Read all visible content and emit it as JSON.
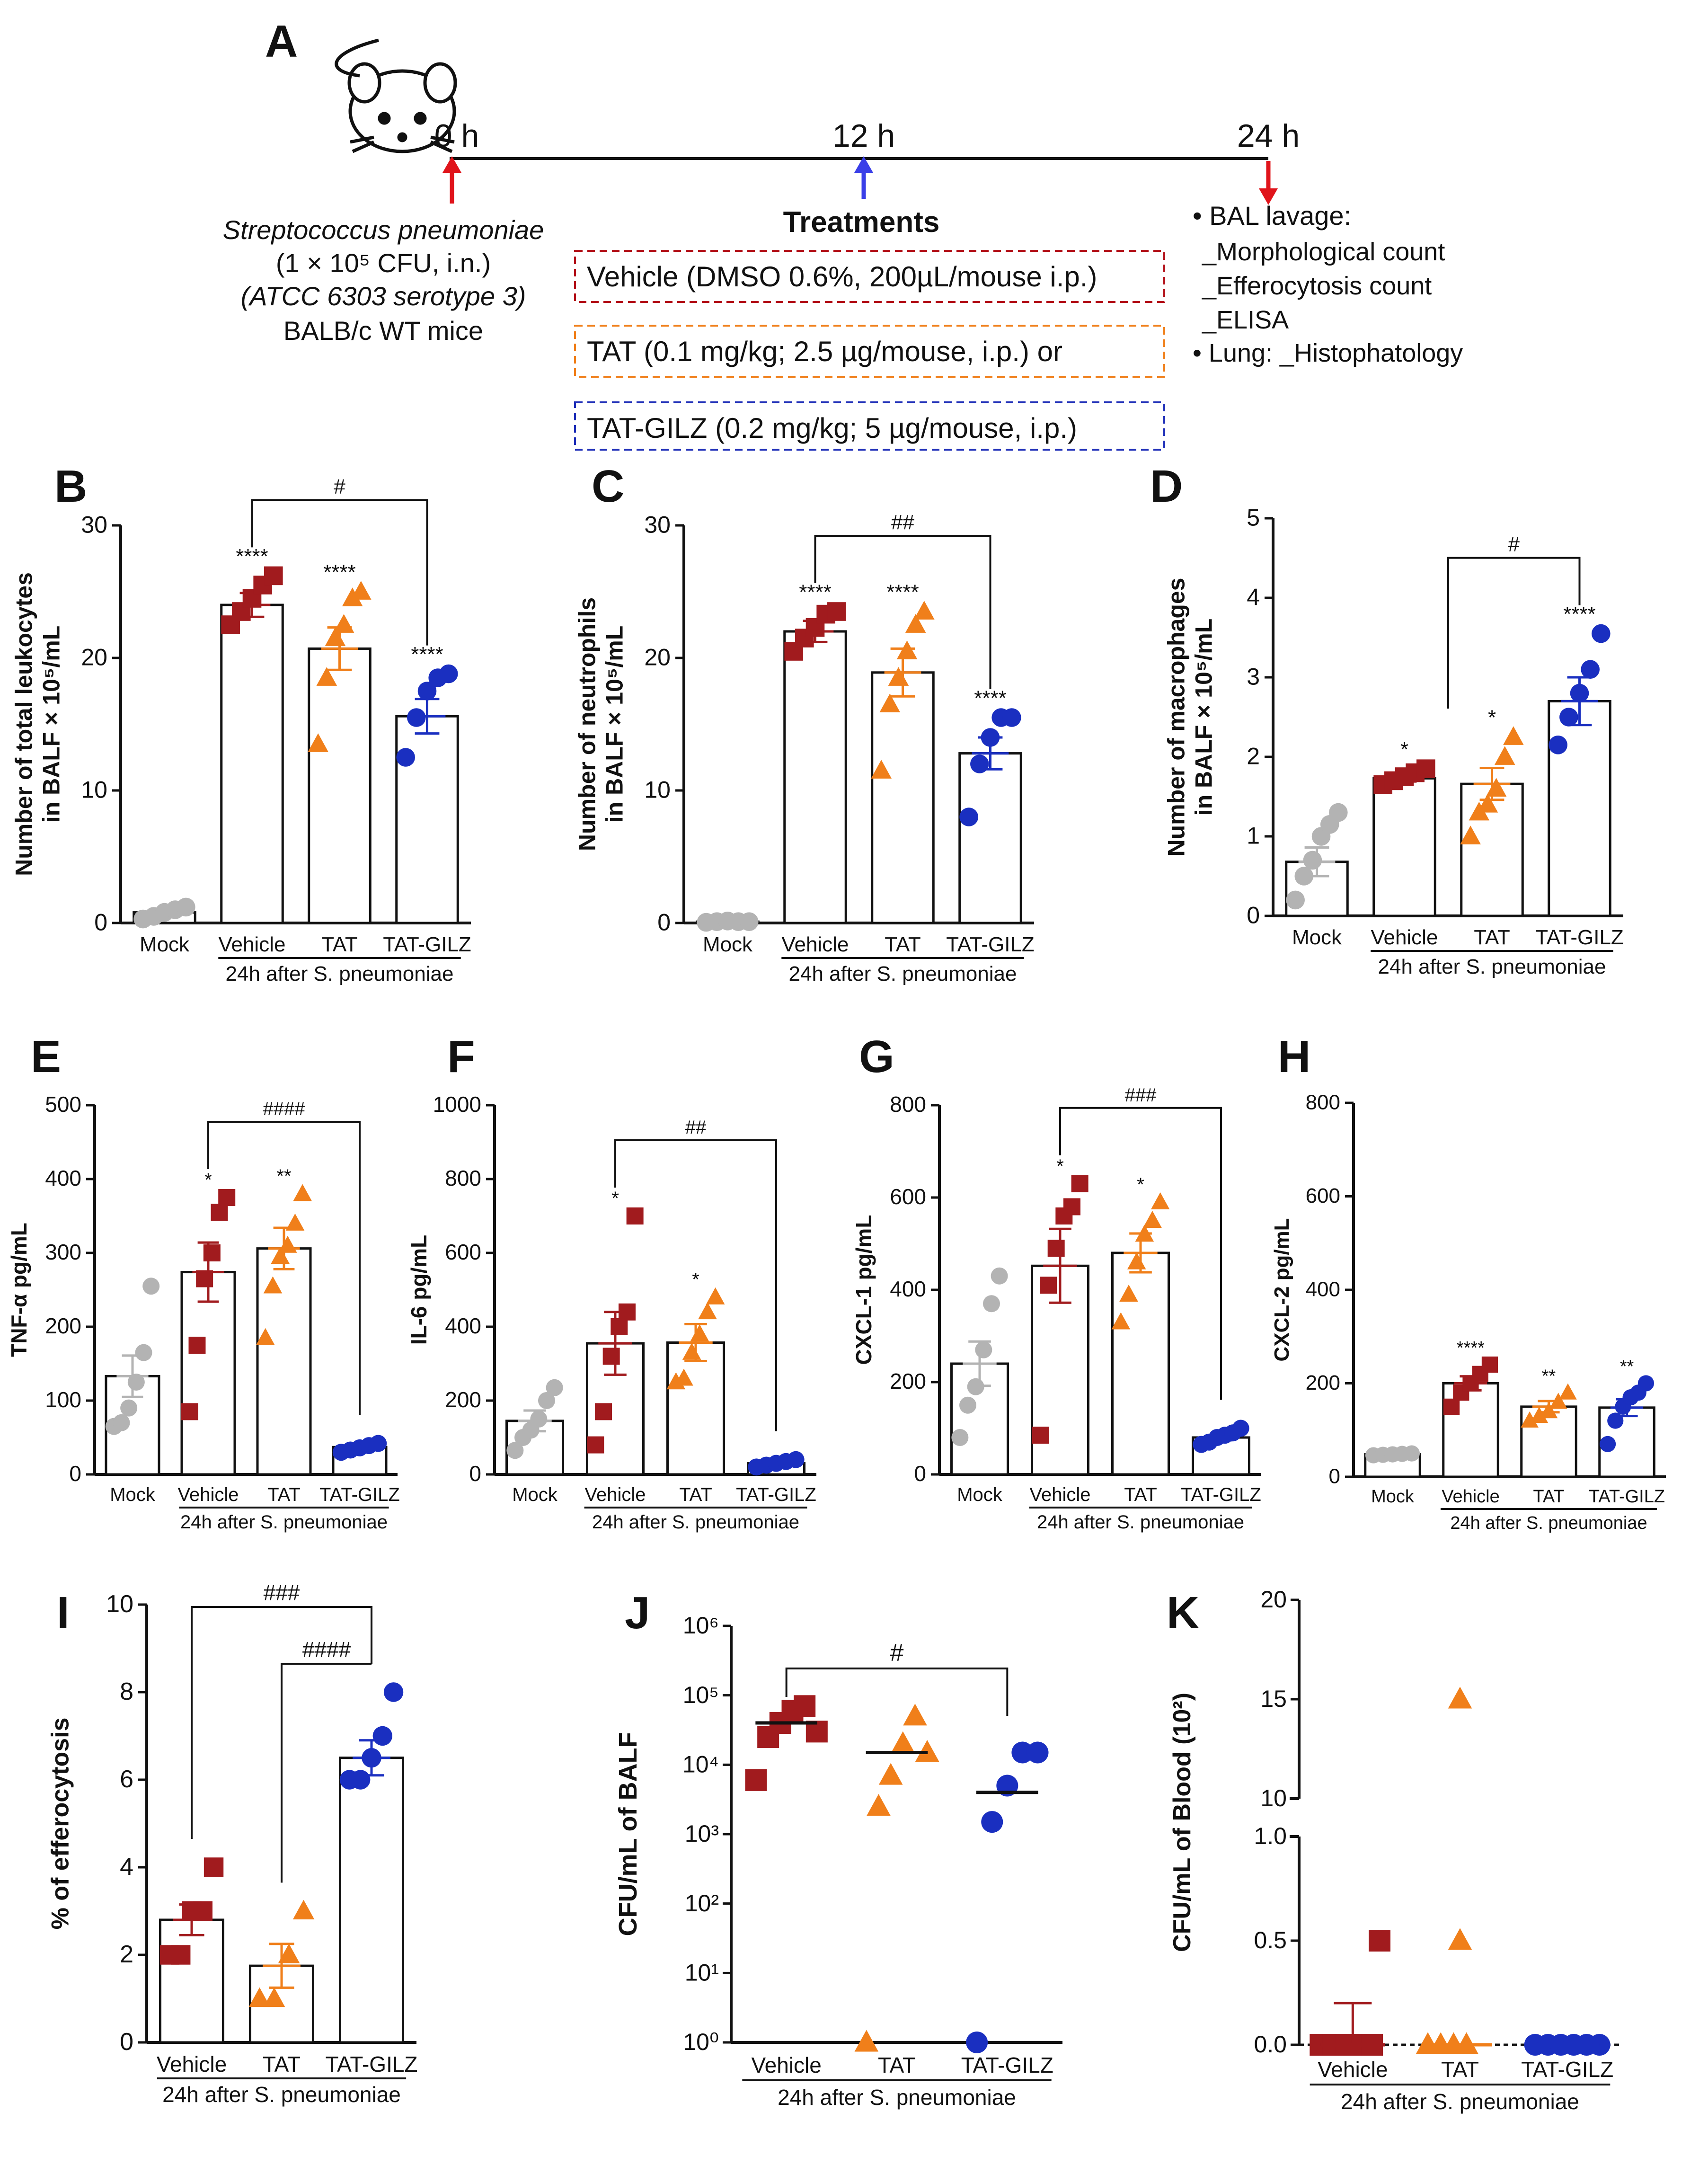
{
  "protocol": {
    "panel_label": "A",
    "times": [
      "0 h",
      "12 h",
      "24 h"
    ],
    "infection_lines": [
      "Streptococcus pneumoniae",
      "(1 × 10⁵ CFU, i.n.)",
      "(ATCC 6303 serotype 3)",
      "BALB/c WT mice"
    ],
    "treatments_title": "Treatments",
    "treatments": [
      {
        "label": "Vehicle (DMSO 0.6%, 200µL/mouse i.p.)",
        "color": "#b3121a"
      },
      {
        "label": "TAT (0.1 mg/kg; 2.5 µg/mouse, i.p.) or",
        "color": "#f07f1a"
      },
      {
        "label": "TAT-GILZ (0.2 mg/kg; 5 µg/mouse, i.p.)",
        "color": "#1f2fb8"
      }
    ],
    "readouts": [
      "• BAL lavage:",
      "_Morphological count",
      "_Efferocytosis count",
      "_ELISA",
      "• Lung: _Histophatology"
    ]
  },
  "colors": {
    "Mock": "#b3b3b3",
    "Vehicle": "#a11b1e",
    "TAT": "#f07f1a",
    "TAT-GILZ": "#1a2fc0",
    "TAT-GILZ-dark": "#1c2a8f"
  },
  "chart_data": [
    {
      "panel": "B",
      "type": "bar",
      "ylabel": [
        "Number of total leukocytes",
        "in BALF × 10⁵/mL"
      ],
      "ylim": [
        0,
        30
      ],
      "yticks": [
        0,
        10,
        20,
        30
      ],
      "groups": [
        "Mock",
        "Vehicle",
        "TAT",
        "TAT-GILZ"
      ],
      "means": [
        0.8,
        24,
        20.7,
        15.6
      ],
      "sem": [
        0.2,
        0.9,
        1.6,
        1.3
      ],
      "points": [
        [
          0.3,
          0.5,
          0.8,
          1.0,
          1.2
        ],
        [
          22.5,
          23.5,
          24.5,
          25.5,
          26.2
        ],
        [
          13.5,
          18.5,
          21.5,
          22.5,
          24.5,
          25
        ],
        [
          12.5,
          15.5,
          17.5,
          18.5,
          18.8
        ]
      ],
      "stars": [
        "",
        "****",
        "****",
        "****"
      ],
      "xcaption": "24h after S. pneumoniae",
      "brackets": [
        {
          "from": 1,
          "to": 3,
          "label": "#"
        }
      ]
    },
    {
      "panel": "C",
      "type": "bar",
      "ylabel": [
        "Number of neutrophils",
        "in BALF × 10⁵/mL"
      ],
      "ylim": [
        0,
        30
      ],
      "yticks": [
        0,
        10,
        20,
        30
      ],
      "groups": [
        "Mock",
        "Vehicle",
        "TAT",
        "TAT-GILZ"
      ],
      "means": [
        0.1,
        22,
        18.9,
        12.8
      ],
      "sem": [
        0.1,
        0.8,
        1.8,
        1.2
      ],
      "points": [
        [
          0.05,
          0.1,
          0.15,
          0.1,
          0.1
        ],
        [
          20.5,
          21.5,
          22.3,
          23.3,
          23.5
        ],
        [
          11.5,
          16.5,
          18.5,
          20.5,
          22.5,
          23.5
        ],
        [
          8,
          12,
          14,
          15.5,
          15.5
        ]
      ],
      "stars": [
        "",
        "****",
        "****",
        "****"
      ],
      "xcaption": "24h after S. pneumoniae",
      "brackets": [
        {
          "from": 1,
          "to": 3,
          "label": "##"
        }
      ]
    },
    {
      "panel": "D",
      "type": "bar",
      "ylabel": [
        "Number of macrophages",
        "in BALF × 10⁵/mL"
      ],
      "ylim": [
        0,
        5
      ],
      "yticks": [
        0,
        1,
        2,
        3,
        4,
        5
      ],
      "groups": [
        "Mock",
        "Vehicle",
        "TAT",
        "TAT-GILZ"
      ],
      "means": [
        0.68,
        1.73,
        1.66,
        2.7
      ],
      "sem": [
        0.18,
        0.04,
        0.2,
        0.3
      ],
      "points": [
        [
          0.2,
          0.5,
          0.7,
          1.0,
          1.15,
          1.3
        ],
        [
          1.65,
          1.7,
          1.75,
          1.8,
          1.85
        ],
        [
          1.0,
          1.3,
          1.4,
          1.6,
          2.0,
          2.25
        ],
        [
          2.15,
          2.5,
          2.8,
          3.1,
          3.55
        ]
      ],
      "stars": [
        "",
        "*",
        "*",
        "****"
      ],
      "xcaption": "24h after S. pneumoniae",
      "brackets": [
        {
          "from": "1-2",
          "to": 3,
          "label": "#"
        }
      ]
    },
    {
      "panel": "E",
      "type": "bar",
      "ylabel": [
        "TNF-α pg/mL"
      ],
      "ylim": [
        0,
        500
      ],
      "yticks": [
        0,
        100,
        200,
        300,
        400,
        500
      ],
      "groups": [
        "Mock",
        "Vehicle",
        "TAT",
        "TAT-GILZ"
      ],
      "means": [
        133,
        274,
        306,
        37
      ],
      "sem": [
        28,
        40,
        28,
        3
      ],
      "points": [
        [
          65,
          70,
          90,
          125,
          165,
          255
        ],
        [
          85,
          175,
          265,
          300,
          355,
          375
        ],
        [
          185,
          255,
          295,
          310,
          340,
          380
        ],
        [
          30,
          33,
          36,
          39,
          42
        ]
      ],
      "stars": [
        "",
        "*",
        "**",
        ""
      ],
      "xcaption": "24h after S. pneumoniae",
      "brackets": [
        {
          "from": 1,
          "to": 3,
          "label": "####"
        }
      ]
    },
    {
      "panel": "F",
      "type": "bar",
      "ylabel": [
        "IL-6 pg/mL"
      ],
      "ylim": [
        0,
        1000
      ],
      "yticks": [
        0,
        200,
        400,
        600,
        800,
        1000
      ],
      "groups": [
        "Mock",
        "Vehicle",
        "TAT",
        "TAT-GILZ"
      ],
      "means": [
        145,
        355,
        357,
        30
      ],
      "sem": [
        28,
        85,
        50,
        5
      ],
      "points": [
        [
          65,
          100,
          120,
          150,
          200,
          235
        ],
        [
          80,
          170,
          320,
          400,
          440,
          700
        ],
        [
          250,
          260,
          330,
          380,
          440,
          480
        ],
        [
          20,
          25,
          30,
          35,
          40
        ]
      ],
      "stars": [
        "",
        "*",
        "*",
        ""
      ],
      "xcaption": "24h after S. pneumoniae",
      "brackets": [
        {
          "from": 1,
          "to": 3,
          "label": "##"
        }
      ]
    },
    {
      "panel": "G",
      "type": "bar",
      "ylabel": [
        "CXCL-1 pg/mL"
      ],
      "ylim": [
        0,
        800
      ],
      "yticks": [
        0,
        200,
        400,
        600,
        800
      ],
      "groups": [
        "Mock",
        "Vehicle",
        "TAT",
        "TAT-GILZ"
      ],
      "means": [
        240,
        452,
        480,
        80
      ],
      "sem": [
        48,
        80,
        42,
        6
      ],
      "points": [
        [
          80,
          150,
          190,
          270,
          370,
          430
        ],
        [
          85,
          410,
          490,
          560,
          580,
          630
        ],
        [
          330,
          390,
          460,
          520,
          550,
          590
        ],
        [
          65,
          70,
          80,
          85,
          90,
          100
        ]
      ],
      "stars": [
        "",
        "*",
        "*",
        ""
      ],
      "xcaption": "24h after S. pneumoniae",
      "brackets": [
        {
          "from": 1,
          "to": 3,
          "label": "###"
        }
      ]
    },
    {
      "panel": "H",
      "type": "bar",
      "ylabel": [
        "CXCL-2 pg/mL"
      ],
      "ylim": [
        0,
        800
      ],
      "yticks": [
        0,
        200,
        400,
        600,
        800
      ],
      "groups": [
        "Mock",
        "Vehicle",
        "TAT",
        "TAT-GILZ"
      ],
      "means": [
        48,
        200,
        150,
        148
      ],
      "sem": [
        2,
        15,
        12,
        18
      ],
      "points": [
        [
          46,
          47,
          48,
          49,
          50
        ],
        [
          150,
          180,
          200,
          220,
          240
        ],
        [
          120,
          130,
          140,
          160,
          180
        ],
        [
          70,
          120,
          150,
          170,
          180,
          200
        ]
      ],
      "stars": [
        "",
        "****",
        "**",
        "**"
      ],
      "xcaption": "24h after S. pneumoniae",
      "brackets": []
    },
    {
      "panel": "I",
      "type": "bar",
      "ylabel": [
        "% of efferocytosis"
      ],
      "ylim": [
        0,
        10
      ],
      "yticks": [
        0,
        2,
        4,
        6,
        8,
        10
      ],
      "groups": [
        "Vehicle",
        "TAT",
        "TAT-GILZ"
      ],
      "means": [
        2.8,
        1.75,
        6.5
      ],
      "sem": [
        0.35,
        0.5,
        0.4
      ],
      "points": [
        [
          2,
          2,
          3,
          3,
          4
        ],
        [
          1,
          1,
          2,
          3
        ],
        [
          6,
          6,
          6.5,
          7,
          8
        ]
      ],
      "stars": [
        "",
        "",
        ""
      ],
      "xcaption": "24h after S. pneumoniae",
      "brackets": [
        {
          "from": 0,
          "to": 2,
          "label": "###"
        },
        {
          "from": 1,
          "to": 2,
          "label": "####"
        }
      ]
    },
    {
      "panel": "J",
      "type": "scatter",
      "scale": "log",
      "ylabel": [
        "CFU/mL of BALF"
      ],
      "ylim": [
        1,
        1000000
      ],
      "yticks": [
        "10⁰",
        "10¹",
        "10²",
        "10³",
        "10⁴",
        "10⁵",
        "10⁶"
      ],
      "groups": [
        "Vehicle",
        "TAT",
        "TAT-GILZ"
      ],
      "medians": [
        40000,
        15000,
        4000
      ],
      "points": [
        [
          6000,
          25000,
          40000,
          60000,
          70000,
          30000
        ],
        [
          1,
          2500,
          7000,
          20000,
          50000,
          15000
        ],
        [
          1,
          1500,
          5000,
          15000,
          15000
        ]
      ],
      "xcaption": "24h after S. pneumoniae",
      "brackets": [
        {
          "from": 0,
          "to": 2,
          "label": "#"
        }
      ]
    },
    {
      "panel": "K",
      "type": "scatter",
      "scale": "broken",
      "ylabel": [
        "CFU/mL of Blood (10²)"
      ],
      "ylim_lower": [
        0,
        1.0
      ],
      "ylim_upper": [
        10,
        20
      ],
      "yticks": [
        "0.0",
        "0.5",
        "1.0",
        "10",
        "15",
        "20"
      ],
      "groups": [
        "Vehicle",
        "TAT",
        "TAT-GILZ"
      ],
      "means": [
        0,
        0,
        0
      ],
      "sem": [
        0.2,
        0,
        0
      ],
      "points": [
        [
          0,
          0,
          0,
          0,
          0,
          0.5
        ],
        [
          0,
          0,
          0,
          0,
          0.5,
          15
        ],
        [
          0,
          0,
          0,
          0,
          0,
          0
        ]
      ],
      "xcaption": "24h after S. pneumoniae",
      "brackets": []
    }
  ]
}
